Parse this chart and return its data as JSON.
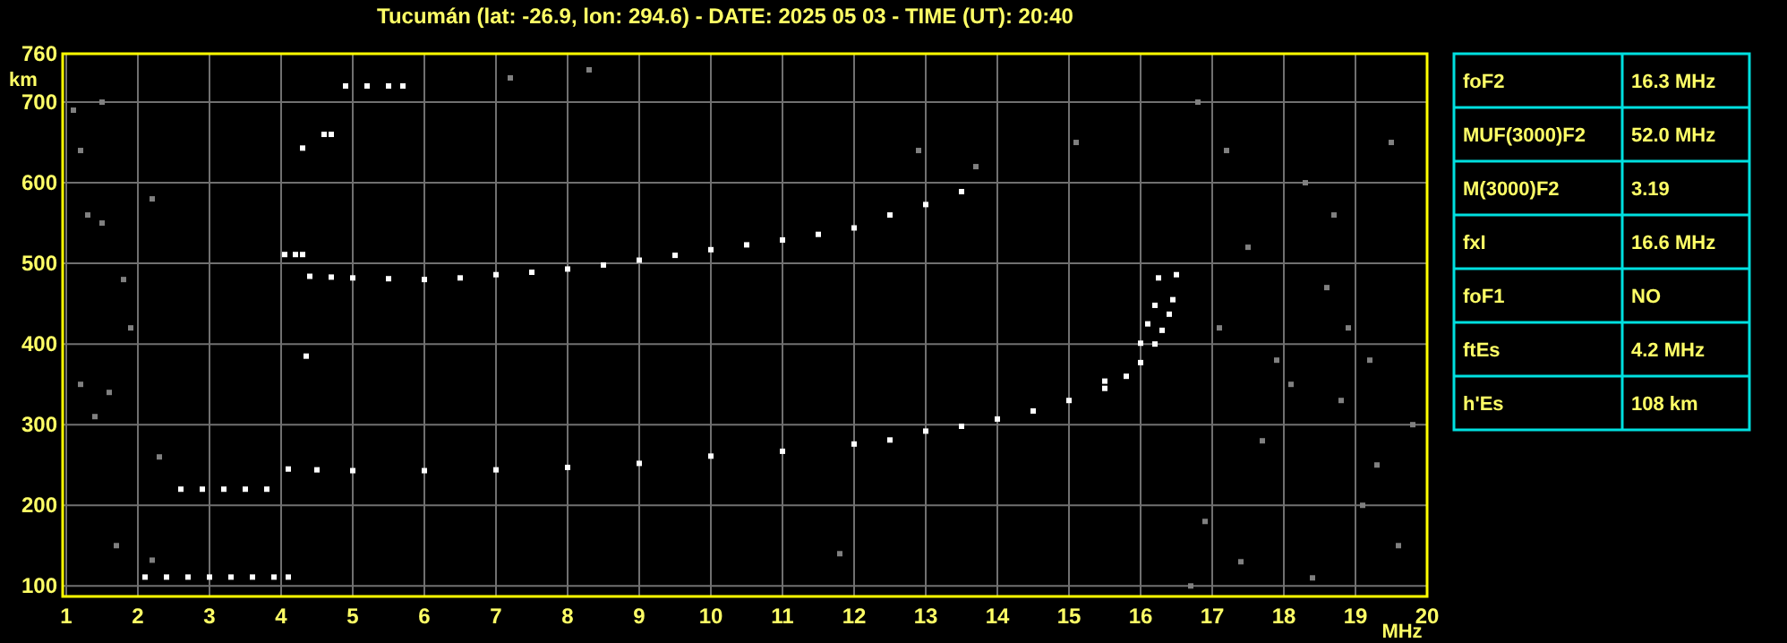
{
  "chart_data": [
    {
      "type": "scatter",
      "title": "Tucumán (lat: -26.9, lon: 294.6) - DATE: 2025 05 03 - TIME (UT): 20:40",
      "xlabel": "MHz",
      "ylabel": "km",
      "xlim": [
        0.95,
        20
      ],
      "ylim": [
        87,
        760
      ],
      "xticks": [
        1,
        2,
        3,
        4,
        5,
        6,
        7,
        8,
        9,
        10,
        11,
        12,
        13,
        14,
        15,
        16,
        17,
        18,
        19,
        20
      ],
      "yticks": [
        100,
        200,
        300,
        400,
        500,
        600,
        700,
        760
      ],
      "grid": true,
      "marker": "square",
      "series": [
        {
          "color": "#ffffff",
          "x": [
            4.1,
            4.5,
            5,
            6,
            7,
            8,
            9,
            10,
            11,
            12,
            12.5,
            13,
            13.5,
            14,
            14.5,
            15,
            15.5,
            16,
            16.1,
            16.2,
            16.25
          ],
          "values": [
            245,
            244,
            243,
            243,
            244,
            247,
            252,
            261,
            267,
            276,
            281,
            292,
            298,
            307,
            317,
            330,
            354,
            401,
            425,
            448,
            482
          ]
        },
        {
          "color": "#ffffff",
          "x": [
            15.5,
            15.8,
            16,
            16.2,
            16.3,
            16.4,
            16.45,
            16.5
          ],
          "values": [
            345,
            360,
            377,
            400,
            417,
            437,
            455,
            486
          ]
        },
        {
          "color": "#ffffff",
          "x": [
            4.4,
            4.7,
            5,
            5.5,
            6,
            6.5,
            7,
            7.5,
            8,
            8.5,
            9,
            9.5,
            10,
            10.5,
            11,
            11.5,
            12,
            12.5,
            13,
            13.5
          ],
          "values": [
            484,
            483,
            482,
            481,
            480,
            482,
            486,
            489,
            493,
            498,
            504,
            510,
            517,
            523,
            529,
            536,
            544,
            560,
            573,
            589
          ]
        },
        {
          "color": "#ffffff",
          "x": [
            2.1,
            2.4,
            2.7,
            3,
            3.3,
            3.6,
            3.9,
            4.1,
            2.6,
            2.9,
            3.2,
            3.5,
            3.8,
            4.05,
            4.2,
            4.3,
            4.35,
            4.3,
            4.6,
            4.7,
            4.9,
            5.2,
            5.5,
            5.7
          ],
          "values": [
            111,
            111,
            111,
            111,
            111,
            111,
            111,
            111,
            220,
            220,
            220,
            220,
            220,
            511,
            511,
            511,
            385,
            643,
            660,
            660,
            720,
            720,
            720,
            720
          ]
        },
        {
          "color": "#808080",
          "x": [
            1.1,
            1.2,
            1.3,
            1.5,
            1.8,
            1.9,
            2.2,
            2.3,
            1.4,
            1.6,
            1.7,
            2.2,
            1.2,
            1.5,
            7.2,
            8.3,
            11.8,
            12.9,
            13.7,
            15.1,
            16.8,
            17.2,
            17.5,
            17.9,
            18.3,
            18.6,
            18.9,
            19.3,
            19.6,
            19.8,
            16.9,
            17.4,
            18.1,
            18.7,
            19.1,
            19.5,
            17.1,
            17.7,
            18.4,
            19.2,
            16.7,
            18.8
          ],
          "values": [
            690,
            640,
            560,
            550,
            480,
            420,
            580,
            260,
            310,
            340,
            150,
            132,
            350,
            700,
            730,
            740,
            140,
            640,
            620,
            650,
            700,
            640,
            520,
            380,
            600,
            470,
            420,
            250,
            150,
            300,
            180,
            130,
            350,
            560,
            200,
            650,
            420,
            280,
            110,
            380,
            100,
            330
          ]
        }
      ]
    },
    {
      "type": "other",
      "categories": [
        "foF2",
        "MUF(3000)F2",
        "M(3000)F2",
        "fxI",
        "foF1",
        "ftEs",
        "h'Es"
      ],
      "value_labels": [
        "16.3 MHz",
        "52.0 MHz",
        "3.19",
        "16.6 MHz",
        "NO",
        "4.2 MHz",
        "108 km"
      ]
    }
  ]
}
